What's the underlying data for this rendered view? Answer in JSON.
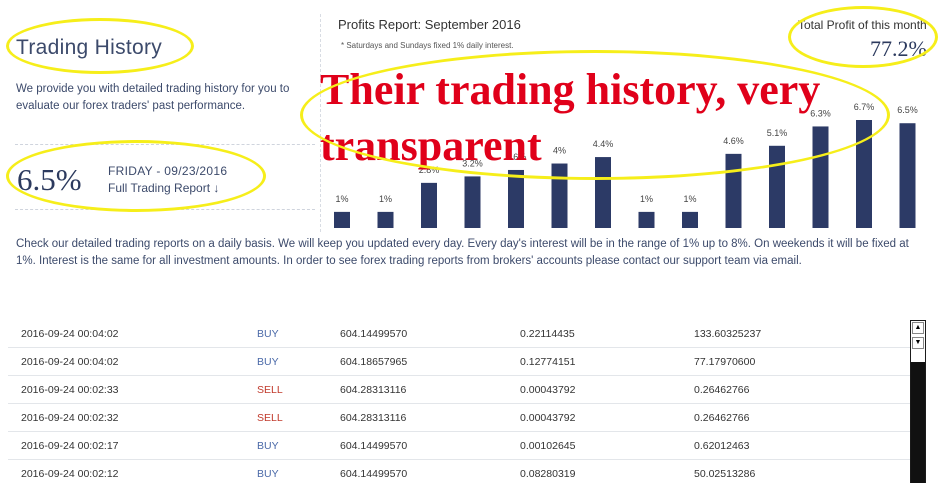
{
  "page": {
    "title": "Trading History",
    "description": "We provide you with detailed trading history for you to evaluate our forex traders' past performance.",
    "latest_pct": "6.5%",
    "latest_date": "FRIDAY - 09/23/2016",
    "full_report_link": "Full Trading Report ↓"
  },
  "report": {
    "title": "Profits Report: September 2016",
    "note": "* Saturdays and Sundays fixed 1% daily interest.",
    "total_label": "Total Profit of this month",
    "total_value": "77.2%"
  },
  "overlay_text": {
    "line1": "Their trading history, very",
    "line2": "transparent"
  },
  "info_text": "Check our detailed trading reports on a daily basis. We will keep you updated every day. Every day's interest will be in the range of 1% up to 8%. On weekends it will be fixed at 1%. Interest is the same for all investment amounts. In order to see forex trading reports from brokers' accounts please contact our support team via email.",
  "colors": {
    "bar": "#2c3a66",
    "highlight": "#f6ee1a",
    "overlay": "#e0001a",
    "buy": "#4a69a8",
    "sell": "#c0392b"
  },
  "chart_data": {
    "type": "bar",
    "values": [
      1,
      1,
      2.8,
      3.2,
      3.6,
      4,
      4.4,
      1,
      1,
      4.6,
      5.1,
      6.3,
      6.7,
      6.5
    ],
    "labels": [
      "1%",
      "1%",
      "2.8%",
      "3.2%",
      "3.6%",
      "4%",
      "4.4%",
      "1%",
      "1%",
      "4.6%",
      "5.1%",
      "6.3%",
      "6.7%",
      "6.5%"
    ],
    "ylim": [
      0,
      6.7
    ]
  },
  "trades": [
    {
      "time": "2016-09-24 00:04:02",
      "type": "BUY",
      "price": "604.14499570",
      "amount": "0.22114435",
      "total": "133.60325237"
    },
    {
      "time": "2016-09-24 00:04:02",
      "type": "BUY",
      "price": "604.18657965",
      "amount": "0.12774151",
      "total": "77.17970600"
    },
    {
      "time": "2016-09-24 00:02:33",
      "type": "SELL",
      "price": "604.28313116",
      "amount": "0.00043792",
      "total": "0.26462766"
    },
    {
      "time": "2016-09-24 00:02:32",
      "type": "SELL",
      "price": "604.28313116",
      "amount": "0.00043792",
      "total": "0.26462766"
    },
    {
      "time": "2016-09-24 00:02:17",
      "type": "BUY",
      "price": "604.14499570",
      "amount": "0.00102645",
      "total": "0.62012463"
    },
    {
      "time": "2016-09-24 00:02:12",
      "type": "BUY",
      "price": "604.14499570",
      "amount": "0.08280319",
      "total": "50.02513286"
    }
  ],
  "scrollbar": {
    "up_icon": "arrow-up-icon",
    "down_icon": "arrow-down-icon"
  }
}
